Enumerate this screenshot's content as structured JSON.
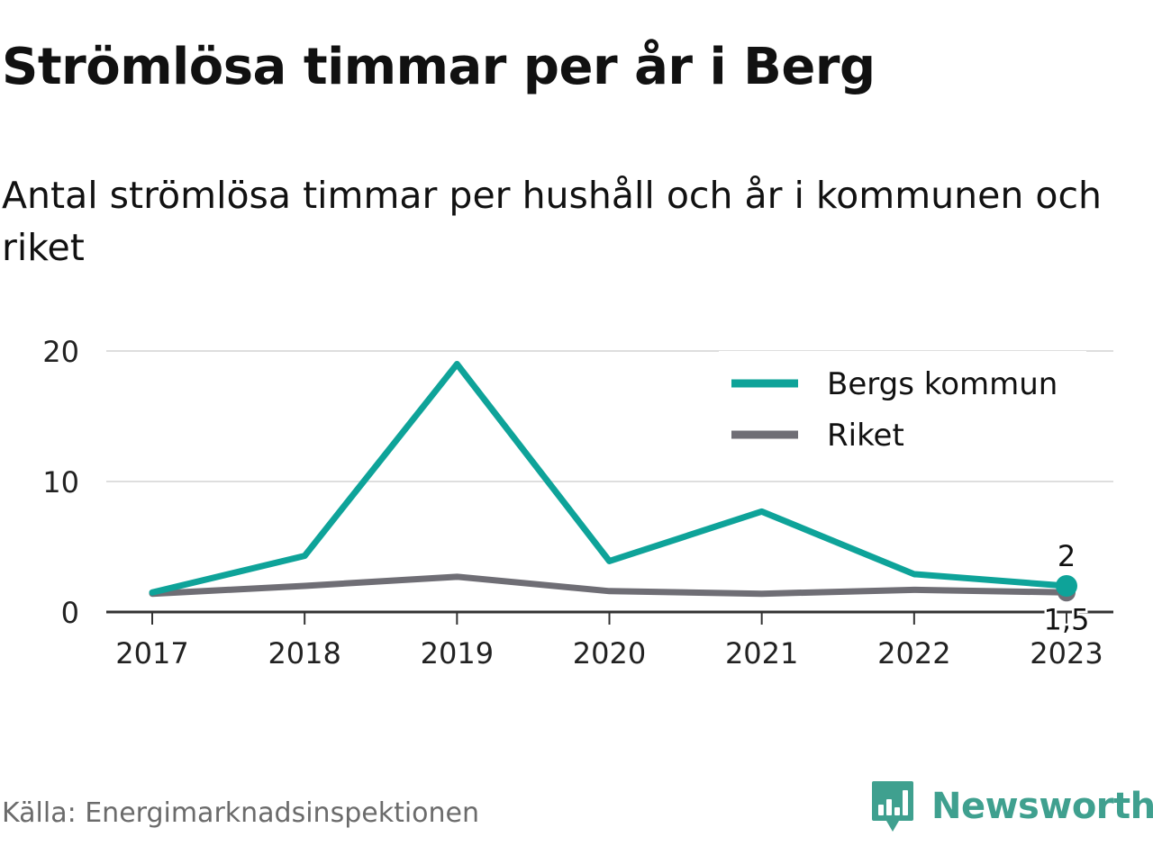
{
  "header": {
    "title": "Strömlösa timmar per år i Berg",
    "subtitle": "Antal strömlösa timmar per hushåll och år i kommunen och riket"
  },
  "chart_data": {
    "type": "line",
    "title": "Strömlösa timmar per år i Berg",
    "subtitle": "Antal strömlösa timmar per hushåll och år i kommunen och riket",
    "x": [
      "2017",
      "2018",
      "2019",
      "2020",
      "2021",
      "2022",
      "2023"
    ],
    "ylim": [
      0,
      20
    ],
    "yticks": [
      0,
      10,
      20
    ],
    "grid": true,
    "legend_position": "top-right",
    "series": [
      {
        "name": "Bergs kommun",
        "color": "#0ea399",
        "values": [
          1.5,
          4.3,
          19.0,
          3.9,
          7.7,
          2.9,
          2.0
        ],
        "end_label": "2"
      },
      {
        "name": "Riket",
        "color": "#6f6e75",
        "values": [
          1.4,
          2.0,
          2.7,
          1.6,
          1.4,
          1.7,
          1.5
        ],
        "end_label": "1,5"
      }
    ]
  },
  "footer": {
    "source": "Källa: Energimarknadsinspektionen",
    "brand": "Newsworthy",
    "brand_color": "#3fa08f",
    "brand_icon": "newsworthy-chart-icon"
  }
}
